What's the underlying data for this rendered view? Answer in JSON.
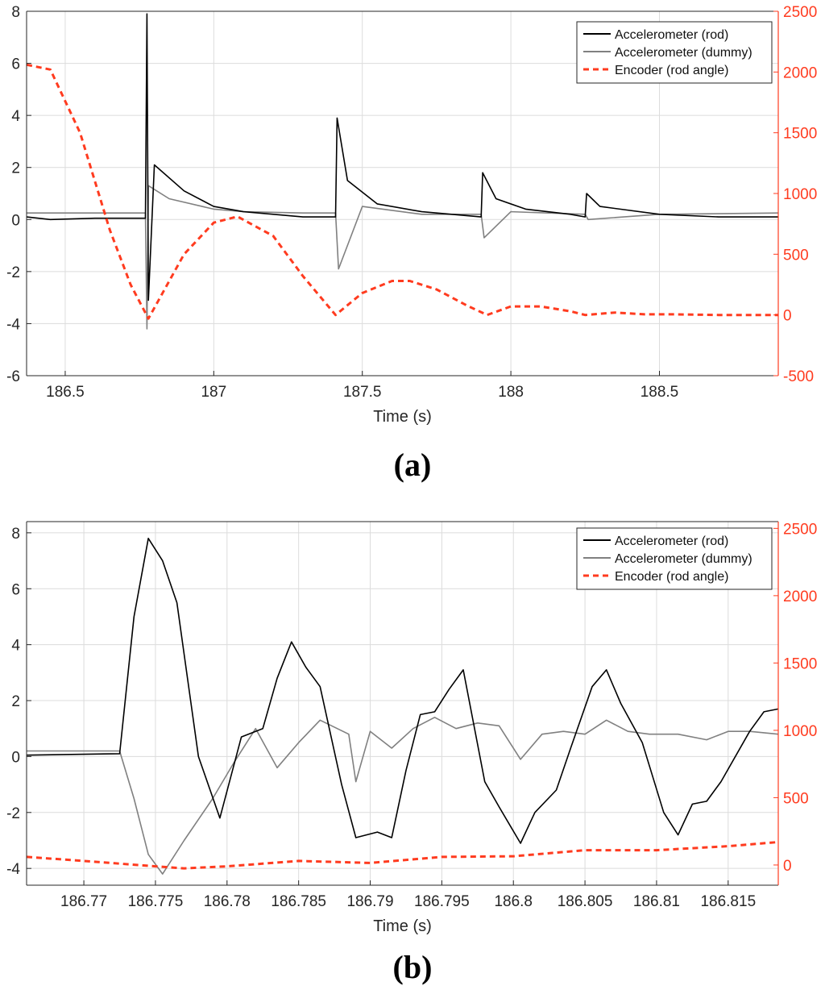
{
  "colors": {
    "rod": "#000000",
    "dummy": "#808080",
    "encoder": "#ff3b1f",
    "axis": "#262626",
    "grid": "#dcdcdc"
  },
  "chart_data": [
    {
      "panel_label": "(a)",
      "type": "line",
      "xlabel": "Time (s)",
      "ylabel_left": "",
      "ylabel_right": "",
      "xlim": [
        186.37,
        188.9
      ],
      "ylim_left": [
        -6,
        8
      ],
      "ylim_right": [
        -500,
        2500
      ],
      "x_ticks": [
        186.5,
        187,
        187.5,
        188,
        188.5
      ],
      "x_tick_labels": [
        "186.5",
        "187",
        "187.5",
        "188",
        "188.5"
      ],
      "y_left_ticks": [
        -6,
        -4,
        -2,
        0,
        2,
        4,
        6,
        8
      ],
      "y_left_tick_labels": [
        "-6",
        "-4",
        "-2",
        "0",
        "2",
        "4",
        "6",
        "8"
      ],
      "y_right_ticks": [
        -500,
        0,
        500,
        1000,
        1500,
        2000,
        2500
      ],
      "y_right_tick_labels": [
        "-500",
        "0",
        "500",
        "1000",
        "1500",
        "2000",
        "2500"
      ],
      "grid": true,
      "legend_position": "top-right",
      "series": [
        {
          "name": "Accelerometer (rod)",
          "axis": "left",
          "style": "solid",
          "x": [
            186.37,
            186.45,
            186.6,
            186.7,
            186.77,
            186.775,
            186.78,
            186.8,
            186.9,
            187.0,
            187.1,
            187.2,
            187.3,
            187.4,
            187.41,
            187.415,
            187.45,
            187.55,
            187.7,
            187.85,
            187.9,
            187.905,
            187.95,
            188.05,
            188.2,
            188.25,
            188.255,
            188.3,
            188.5,
            188.7,
            188.9
          ],
          "y": [
            0.1,
            0.0,
            0.05,
            0.05,
            0.05,
            7.9,
            -3.1,
            2.1,
            1.1,
            0.5,
            0.3,
            0.2,
            0.1,
            0.1,
            0.1,
            3.9,
            1.5,
            0.6,
            0.3,
            0.15,
            0.1,
            1.8,
            0.8,
            0.4,
            0.2,
            0.1,
            1.0,
            0.5,
            0.2,
            0.1,
            0.1
          ]
        },
        {
          "name": "Accelerometer (dummy)",
          "axis": "left",
          "style": "solid",
          "x": [
            186.37,
            186.5,
            186.7,
            186.77,
            186.775,
            186.78,
            186.85,
            187.0,
            187.1,
            187.3,
            187.41,
            187.42,
            187.5,
            187.7,
            187.9,
            187.91,
            188.0,
            188.25,
            188.26,
            188.5,
            188.9
          ],
          "y": [
            0.25,
            0.25,
            0.25,
            0.25,
            -4.2,
            1.3,
            0.8,
            0.4,
            0.3,
            0.25,
            0.25,
            -1.9,
            0.5,
            0.2,
            0.2,
            -0.7,
            0.3,
            0.2,
            0.0,
            0.2,
            0.25
          ]
        },
        {
          "name": "Encoder (rod angle)",
          "axis": "right",
          "style": "dashed",
          "x": [
            186.37,
            186.45,
            186.55,
            186.65,
            186.72,
            186.78,
            186.9,
            187.0,
            187.08,
            187.2,
            187.3,
            187.41,
            187.5,
            187.6,
            187.66,
            187.75,
            187.85,
            187.92,
            188.0,
            188.1,
            188.2,
            188.25,
            188.35,
            188.45,
            188.55,
            188.7,
            188.9
          ],
          "y": [
            2060,
            2020,
            1500,
            700,
            250,
            -30,
            500,
            760,
            810,
            650,
            320,
            0,
            180,
            280,
            280,
            210,
            80,
            0,
            70,
            70,
            30,
            0,
            20,
            5,
            5,
            0,
            0
          ]
        }
      ]
    },
    {
      "panel_label": "(b)",
      "type": "line",
      "xlabel": "Time (s)",
      "ylabel_left": "",
      "ylabel_right": "",
      "xlim": [
        186.766,
        186.8185
      ],
      "ylim_left": [
        -4.6,
        8.4
      ],
      "ylim_right": [
        -150,
        2550
      ],
      "x_ticks": [
        186.77,
        186.775,
        186.78,
        186.785,
        186.79,
        186.795,
        186.8,
        186.805,
        186.81,
        186.815
      ],
      "x_tick_labels": [
        "186.77",
        "186.775",
        "186.78",
        "186.785",
        "186.79",
        "186.795",
        "186.8",
        "186.805",
        "186.81",
        "186.815"
      ],
      "y_left_ticks": [
        -4,
        -2,
        0,
        2,
        4,
        6,
        8
      ],
      "y_left_tick_labels": [
        "-4",
        "-2",
        "0",
        "2",
        "4",
        "6",
        "8"
      ],
      "y_right_ticks": [
        0,
        500,
        1000,
        1500,
        2000,
        2500
      ],
      "y_right_tick_labels": [
        "0",
        "500",
        "1000",
        "1500",
        "2000",
        "2500"
      ],
      "grid": true,
      "legend_position": "top-right",
      "series": [
        {
          "name": "Accelerometer (rod)",
          "axis": "left",
          "style": "solid",
          "x": [
            186.766,
            186.7725,
            186.7735,
            186.7745,
            186.7755,
            186.7765,
            186.778,
            186.7795,
            186.781,
            186.7825,
            186.7835,
            186.7845,
            186.7855,
            186.7865,
            186.788,
            186.789,
            186.7905,
            186.7915,
            186.7925,
            186.7935,
            186.7945,
            186.7955,
            186.7965,
            186.798,
            186.799,
            186.8005,
            186.8015,
            186.803,
            186.804,
            186.8055,
            186.8065,
            186.8075,
            186.809,
            186.8105,
            186.8115,
            186.8125,
            186.8135,
            186.8145,
            186.8165,
            186.8175,
            186.8185
          ],
          "y": [
            0.05,
            0.1,
            5.0,
            7.8,
            7.0,
            5.5,
            0.0,
            -2.2,
            0.7,
            1.0,
            2.8,
            4.1,
            3.2,
            2.5,
            -1.0,
            -2.9,
            -2.7,
            -2.9,
            -0.5,
            1.5,
            1.6,
            2.4,
            3.1,
            -0.9,
            -1.8,
            -3.1,
            -2.0,
            -1.2,
            0.3,
            2.5,
            3.1,
            1.9,
            0.5,
            -2.0,
            -2.8,
            -1.7,
            -1.6,
            -0.9,
            0.9,
            1.6,
            1.7
          ]
        },
        {
          "name": "Accelerometer (dummy)",
          "axis": "left",
          "style": "solid",
          "x": [
            186.766,
            186.7725,
            186.7735,
            186.7745,
            186.7755,
            186.777,
            186.779,
            186.7805,
            186.782,
            186.7835,
            186.785,
            186.7865,
            186.7885,
            186.789,
            186.79,
            186.7915,
            186.793,
            186.7945,
            186.796,
            186.7975,
            186.799,
            186.8005,
            186.802,
            186.8035,
            186.805,
            186.8065,
            186.808,
            186.8095,
            186.8115,
            186.8135,
            186.815,
            186.8165,
            186.8185
          ],
          "y": [
            0.2,
            0.2,
            -1.5,
            -3.5,
            -4.2,
            -3.0,
            -1.5,
            -0.2,
            1.0,
            -0.4,
            0.5,
            1.3,
            0.8,
            -0.9,
            0.9,
            0.3,
            1.0,
            1.4,
            1.0,
            1.2,
            1.1,
            -0.1,
            0.8,
            0.9,
            0.8,
            1.3,
            0.9,
            0.8,
            0.8,
            0.6,
            0.9,
            0.9,
            0.8
          ]
        },
        {
          "name": "Encoder (rod angle)",
          "axis": "right",
          "style": "dashed",
          "x": [
            186.766,
            186.77,
            186.775,
            186.777,
            186.78,
            186.785,
            186.79,
            186.795,
            186.8,
            186.805,
            186.81,
            186.815,
            186.8185
          ],
          "y": [
            60,
            30,
            -10,
            -25,
            -10,
            30,
            15,
            60,
            65,
            110,
            110,
            140,
            170
          ]
        }
      ]
    }
  ],
  "legend": {
    "items": [
      "Accelerometer (rod)",
      "Accelerometer (dummy)",
      "Encoder (rod angle)"
    ]
  }
}
